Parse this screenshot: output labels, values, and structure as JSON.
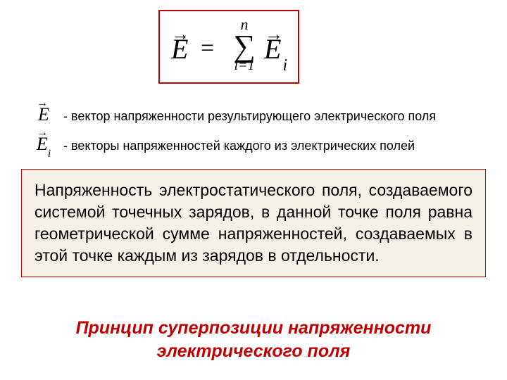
{
  "formula": {
    "lhs": "E",
    "arrow": "→",
    "eq": "=",
    "sum_top": "n",
    "sigma": "∑",
    "sum_bottom": "i=1",
    "rhs_base": "E",
    "rhs_sub": "i",
    "box_border_color": "#c00000"
  },
  "definitions": [
    {
      "sym_base": "E",
      "sym_sub": "",
      "text": "- вектор напряженности результирующего электрического поля"
    },
    {
      "sym_base": "E",
      "sym_sub": "i",
      "text": "- векторы напряженностей каждого из электрических полей"
    }
  ],
  "principle_text": "Напряженность электростатического поля, создаваемого системой точечных зарядов, в данной точке поля равна геометрической сумме напряженностей, создаваемых в этой точке каждым из зарядов в отдельности.",
  "principle_box": {
    "background_color": "#f6f1e7",
    "border_color": "#c00000"
  },
  "title_line1": "Принцип суперпозиции напряженности",
  "title_line2": "электрического поля",
  "title_color": "#c00000",
  "page_background": "#ffffff",
  "fonts": {
    "body_family": "Arial",
    "formula_family": "Times New Roman",
    "title_size_pt": 19,
    "body_size_pt": 17,
    "def_size_pt": 14
  }
}
